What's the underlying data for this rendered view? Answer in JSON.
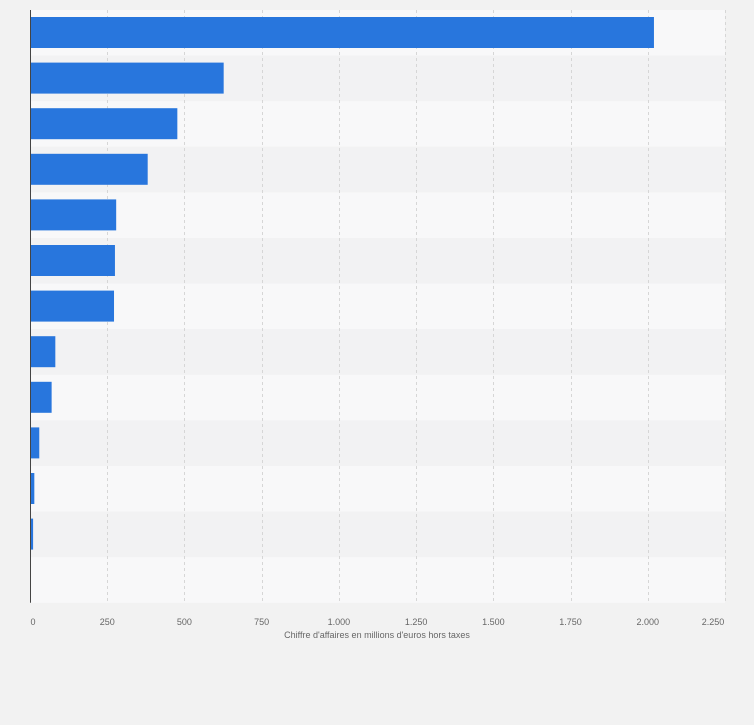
{
  "chart_data": {
    "type": "bar",
    "orientation": "horizontal",
    "categories": [
      "",
      "",
      "",
      "",
      "",
      "",
      "",
      "",
      "",
      "",
      "",
      ""
    ],
    "values": [
      2020,
      627,
      477,
      381,
      279,
      275,
      272,
      82,
      70,
      30,
      14,
      10
    ],
    "title": "",
    "xlabel": "Chiffre d'affaires en millions d'euros hors taxes",
    "ylabel": "",
    "xlim": [
      0,
      2250
    ],
    "x_ticks": [
      0,
      250,
      500,
      750,
      1000,
      1250,
      1500,
      1750,
      2000,
      2250
    ],
    "x_tick_labels": [
      "0",
      "250",
      "500",
      "750",
      "1.000",
      "1.250",
      "1.500",
      "1.750",
      "2.000",
      "2.250"
    ],
    "grid": true,
    "legend": "none",
    "colors": {
      "bar": "#2876dd",
      "band_light": "#f8f8f9",
      "band_dark": "#f2f2f3",
      "background": "#f2f2f2",
      "grid": "#d6d6d6",
      "axis": "#444444",
      "text": "#666666"
    }
  }
}
